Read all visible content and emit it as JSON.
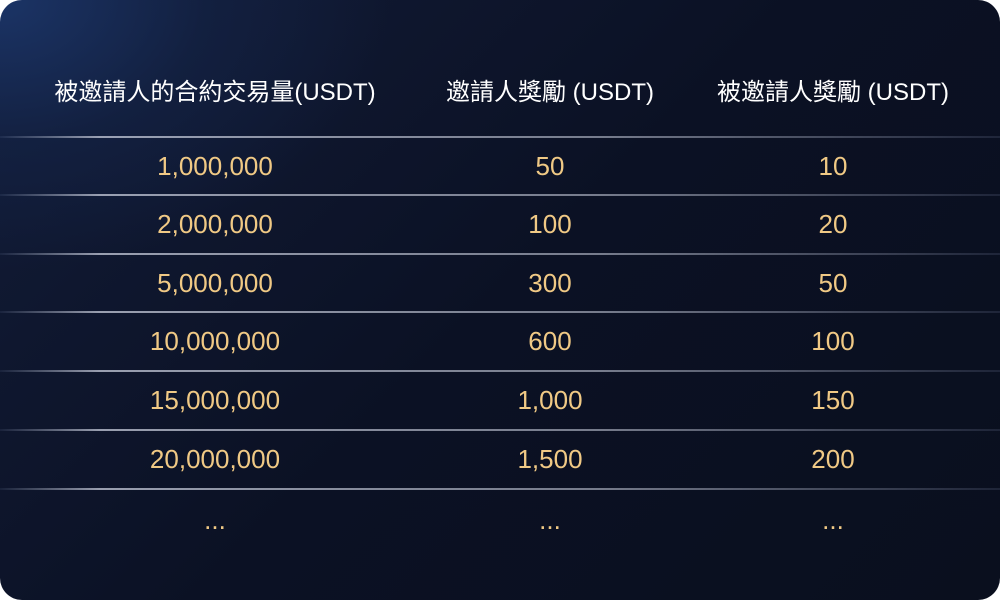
{
  "table": {
    "headers": [
      "被邀請人的合約交易量(USDT)",
      "邀請人獎勵 (USDT)",
      "被邀請人獎勵 (USDT)"
    ],
    "rows": [
      [
        "1,000,000",
        "50",
        "10"
      ],
      [
        "2,000,000",
        "100",
        "20"
      ],
      [
        "5,000,000",
        "300",
        "50"
      ],
      [
        "10,000,000",
        "600",
        "100"
      ],
      [
        "15,000,000",
        "1,000",
        "150"
      ],
      [
        "20,000,000",
        "1,500",
        "200"
      ],
      [
        "...",
        "...",
        "..."
      ]
    ]
  },
  "colors": {
    "value": "#f0c985",
    "header": "#ffffff",
    "background": "#0b1124"
  }
}
